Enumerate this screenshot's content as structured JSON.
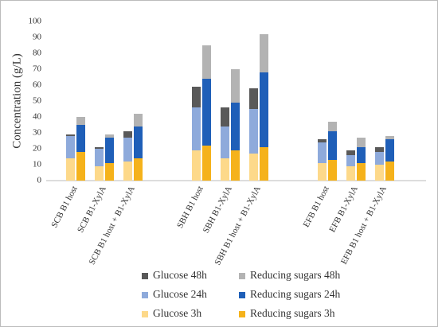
{
  "chart_data": {
    "type": "bar",
    "overlap": true,
    "ylabel": "Concentration (g/L)",
    "categories": [
      "SCB B1 host",
      "SCB B1-XylA",
      "SCB B1 host + B1-XylA",
      "SBH B1 host",
      "SBH B1-XylA",
      "SBH B1 host + B1-XylA",
      "EFB B1 host",
      "EFB B1-XylA",
      "EFB B1 host + B1-XylA"
    ],
    "series": [
      {
        "name": "Glucose 48h",
        "color": "#595959",
        "values": [
          29,
          21,
          31,
          59,
          46,
          58,
          26,
          19,
          21
        ]
      },
      {
        "name": "Reducing sugars 48h",
        "color": "#b3b3b3",
        "values": [
          40,
          29,
          42,
          85,
          70,
          92,
          37,
          27,
          28
        ]
      },
      {
        "name": "Glucose 24h",
        "color": "#8eaadb",
        "values": [
          28,
          20,
          27,
          46,
          34,
          45,
          24,
          16,
          18
        ]
      },
      {
        "name": "Reducing sugars 24h",
        "color": "#1f5fb8",
        "values": [
          35,
          27,
          34,
          64,
          49,
          68,
          31,
          21,
          26
        ]
      },
      {
        "name": "Glucose 3h",
        "color": "#fdd98a",
        "values": [
          14,
          9,
          12,
          19,
          14,
          17,
          11,
          9,
          10
        ]
      },
      {
        "name": "Reducing sugars 3h",
        "color": "#f5b21b",
        "values": [
          18,
          11,
          14,
          22,
          19,
          21,
          13,
          11,
          12
        ]
      }
    ],
    "ylim": [
      0,
      100
    ],
    "yticks": [
      0,
      10,
      20,
      30,
      40,
      50,
      60,
      70,
      80,
      90,
      100
    ],
    "grid": false
  }
}
